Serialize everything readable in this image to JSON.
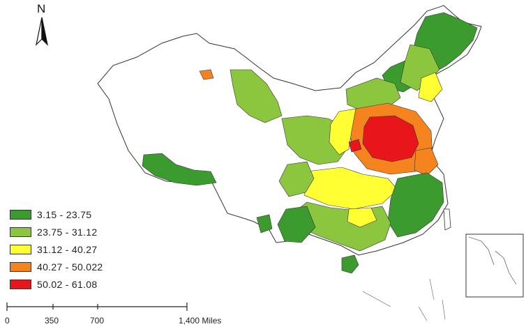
{
  "north_arrow": {
    "label": "N",
    "icon": "north-arrow-icon"
  },
  "legend": {
    "items": [
      {
        "label": "3.15 - 23.75",
        "color": "#3b9b2e"
      },
      {
        "label": "23.75 - 31.12",
        "color": "#8cc63f"
      },
      {
        "label": "31.12 - 40.27",
        "color": "#ffff33"
      },
      {
        "label": "40.27 - 50.022",
        "color": "#f5841f"
      },
      {
        "label": "50.02 - 61.08",
        "color": "#e8161a"
      }
    ]
  },
  "scale_bar": {
    "labels": [
      "0",
      "350",
      "700",
      "1,400 Miles"
    ]
  },
  "colors": {
    "boundary": "#333333",
    "background": "#ffffff"
  }
}
